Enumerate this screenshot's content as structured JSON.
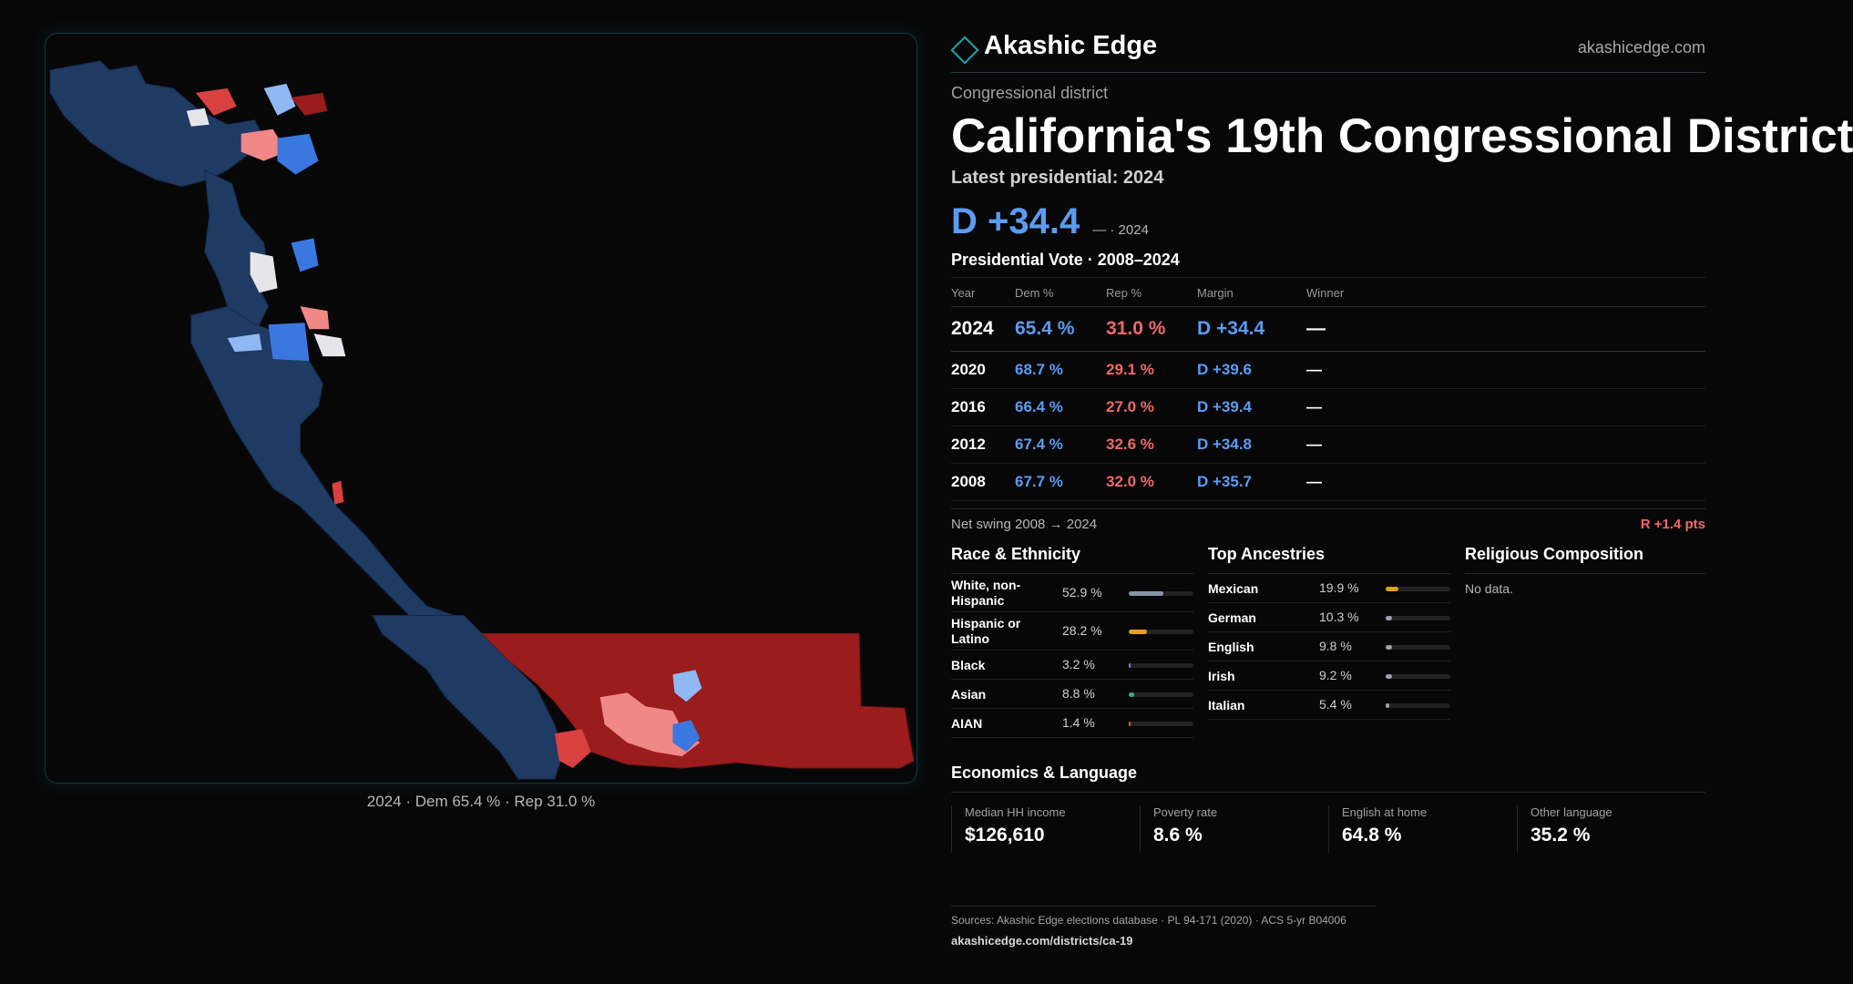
{
  "brand": {
    "name": "Akashic Edge",
    "url": "akashicedge.com"
  },
  "kicker": "Congressional district",
  "title": "California's 19th Congressional District",
  "latest_label": "Latest presidential: 2024",
  "headline": {
    "margin": "D +34.4",
    "sub": "— · 2024"
  },
  "vote_table": {
    "title": "Presidential Vote · 2008–2024",
    "headers": {
      "year": "Year",
      "dem": "Dem %",
      "rep": "Rep %",
      "margin": "Margin",
      "winner": "Winner"
    },
    "rows": [
      {
        "year": "2024",
        "dem": "65.4 %",
        "rep": "31.0 %",
        "margin": "D +34.4",
        "winner": "—"
      },
      {
        "year": "2020",
        "dem": "68.7 %",
        "rep": "29.1 %",
        "margin": "D +39.6",
        "winner": "—"
      },
      {
        "year": "2016",
        "dem": "66.4 %",
        "rep": "27.0 %",
        "margin": "D +39.4",
        "winner": "—"
      },
      {
        "year": "2012",
        "dem": "67.4 %",
        "rep": "32.6 %",
        "margin": "D +34.8",
        "winner": "—"
      },
      {
        "year": "2008",
        "dem": "67.7 %",
        "rep": "32.0 %",
        "margin": "D +35.7",
        "winner": "—"
      }
    ]
  },
  "swing": {
    "label": "Net swing 2008 → 2024",
    "value": "R +1.4 pts"
  },
  "race": {
    "title": "Race & Ethnicity",
    "items": [
      {
        "label": "White, non-Hispanic",
        "pct": "52.9 %",
        "value": 52.9,
        "color": "#8a94a8"
      },
      {
        "label": "Hispanic or Latino",
        "pct": "28.2 %",
        "value": 28.2,
        "color": "#e0a020"
      },
      {
        "label": "Black",
        "pct": "3.2 %",
        "value": 3.2,
        "color": "#8a7ad8"
      },
      {
        "label": "Asian",
        "pct": "8.8 %",
        "value": 8.8,
        "color": "#30b080"
      },
      {
        "label": "AIAN",
        "pct": "1.4 %",
        "value": 1.4,
        "color": "#d06040"
      }
    ]
  },
  "ancestry": {
    "title": "Top Ancestries",
    "items": [
      {
        "label": "Mexican",
        "pct": "19.9 %",
        "value": 19.9,
        "color": "#e0a020"
      },
      {
        "label": "German",
        "pct": "10.3 %",
        "value": 10.3,
        "color": "#9aa0aa"
      },
      {
        "label": "English",
        "pct": "9.8 %",
        "value": 9.8,
        "color": "#9aa0aa"
      },
      {
        "label": "Irish",
        "pct": "9.2 %",
        "value": 9.2,
        "color": "#9aa0aa"
      },
      {
        "label": "Italian",
        "pct": "5.4 %",
        "value": 5.4,
        "color": "#9aa0aa"
      }
    ]
  },
  "religion": {
    "title": "Religious Composition",
    "empty": "No data."
  },
  "economics": {
    "title": "Economics & Language",
    "cells": [
      {
        "label": "Median HH income",
        "value": "$126,610"
      },
      {
        "label": "Poverty rate",
        "value": "8.6 %"
      },
      {
        "label": "English at home",
        "value": "64.8 %"
      },
      {
        "label": "Other language",
        "value": "35.2 %"
      }
    ]
  },
  "sources": {
    "text": "Sources: Akashic Edge elections database · PL 94-171 (2020) · ACS 5-yr B04006",
    "url": "akashicedge.com/districts/ca-19"
  },
  "map": {
    "caption": "2024 · Dem 65.4 % · Rep 31.0 %",
    "colors": {
      "dem_dark": "#1f3a63",
      "dem_mid": "#3a78e0",
      "dem_light": "#8fb8f5",
      "rep_dark": "#9a1c1c",
      "rep_mid": "#d94040",
      "rep_light": "#f08888",
      "tossup": "#e6e6ea"
    }
  }
}
